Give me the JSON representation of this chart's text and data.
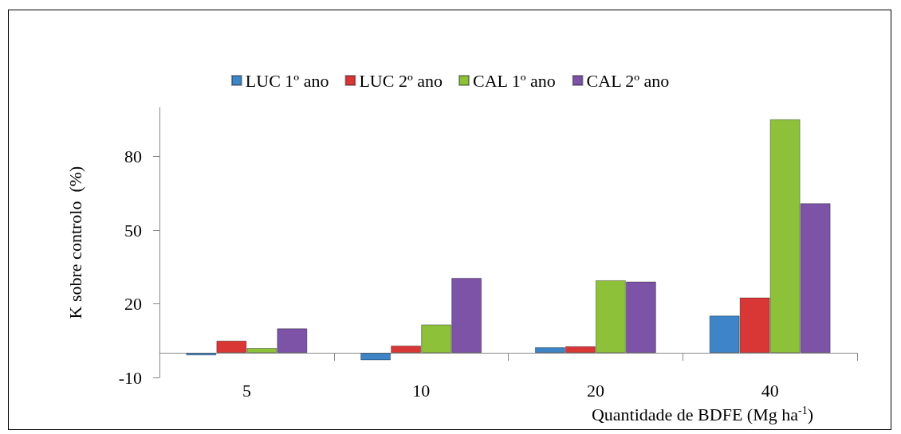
{
  "chart_data": {
    "type": "bar",
    "xlabel": "Quantidade de BDFE (Mg ha$^{-1}$)",
    "ylabel": "K sobre controlo  (%)",
    "categories": [
      "5",
      "10",
      "20",
      "40"
    ],
    "series": [
      {
        "name": "LUC 1º ano",
        "color": "#3d85c6",
        "values": [
          -1,
          -3,
          2.3,
          15.2
        ]
      },
      {
        "name": "LUC 2º ano",
        "color": "#d93636",
        "values": [
          5,
          3,
          2.7,
          22.6
        ]
      },
      {
        "name": "CAL 1º ano",
        "color": "#8dc13a",
        "values": [
          2,
          11.6,
          29.6,
          95.2
        ]
      },
      {
        "name": "CAL 2º ano",
        "color": "#7d53a8",
        "values": [
          10,
          30.6,
          29.1,
          61
        ]
      }
    ],
    "ylim": [
      -10,
      100
    ],
    "yticks": [
      -10,
      20,
      50,
      80
    ],
    "grid": false,
    "legend": "top"
  }
}
